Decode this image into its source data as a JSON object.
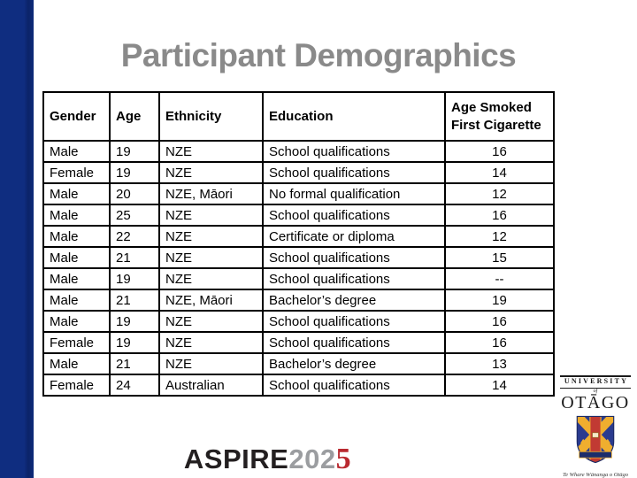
{
  "title": "Participant Demographics",
  "table": {
    "columns": [
      "Gender",
      "Age",
      "Ethnicity",
      "Education",
      "Age Smoked First Cigarette"
    ],
    "rows": [
      [
        "Male",
        "19",
        "NZE",
        "School qualifications",
        "16"
      ],
      [
        "Female",
        "19",
        "NZE",
        "School qualifications",
        "14"
      ],
      [
        "Male",
        "20",
        "NZE, Māori",
        "No formal qualification",
        "12"
      ],
      [
        "Male",
        "25",
        "NZE",
        "School qualifications",
        "16"
      ],
      [
        "Male",
        "22",
        "NZE",
        "Certificate or diploma",
        "12"
      ],
      [
        "Male",
        "21",
        "NZE",
        "School qualifications",
        "15"
      ],
      [
        "Male",
        "19",
        "NZE",
        "School qualifications",
        "--"
      ],
      [
        "Male",
        "21",
        "NZE, Māori",
        "Bachelor’s degree",
        "19"
      ],
      [
        "Male",
        "19",
        "NZE",
        "School qualifications",
        "16"
      ],
      [
        "Female",
        "19",
        "NZE",
        "School qualifications",
        "16"
      ],
      [
        "Male",
        "21",
        "NZE",
        "Bachelor’s degree",
        "13"
      ],
      [
        "Female",
        "24",
        "Australian",
        "School qualifications",
        "14"
      ]
    ]
  },
  "footer_logo": {
    "aspire_text": "ASPIRE",
    "aspire_year_gray": "202",
    "aspire_year_red": "5"
  },
  "otago_logo": {
    "university": "UNIVERSITY",
    "of_word": "of",
    "otago": "OTĀGO",
    "maori_name": "Te Whare Wānanga o Otāgo"
  },
  "colors": {
    "sidebar_blue": "#0f2d80",
    "title_gray": "#8a8a8a",
    "aspire_dark": "#231f20",
    "aspire_gray": "#9b9da0",
    "aspire_red": "#b9292f",
    "shield_blue": "#2a3b8f",
    "shield_gold": "#efae2f",
    "shield_red": "#c13a33"
  }
}
